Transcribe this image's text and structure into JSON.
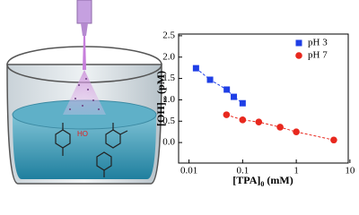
{
  "illustration": {
    "radical_label": "HO"
  },
  "chart_data": {
    "type": "scatter",
    "x_label": [
      "[TPA]",
      "0",
      "(mM)"
    ],
    "y_label": [
      "[OH]",
      "ss",
      "(pM)"
    ],
    "xlog": true,
    "xlim": [
      0.0064,
      9.3
    ],
    "xticks": [
      0.01,
      0.1,
      1,
      10
    ],
    "ylim": [
      -0.48,
      2.54
    ],
    "yticks": [
      {
        "value": 0,
        "label": "0.0"
      },
      0.5,
      {
        "value": 1,
        "label": "1.0"
      },
      1.5,
      {
        "value": 2,
        "label": "2.0"
      },
      2.5
    ],
    "legend": "upper right",
    "series": [
      {
        "name": "pH 3",
        "color": "#1f3fe6",
        "marker": "square",
        "x": [
          0.0135,
          0.0247,
          0.0506,
          0.0685,
          0.1
        ],
        "values": [
          1.74,
          1.47,
          1.24,
          1.07,
          0.92
        ]
      },
      {
        "name": "pH 7",
        "color": "#e8281e",
        "marker": "circle",
        "x": [
          0.05,
          0.1,
          0.2,
          0.5,
          1,
          5
        ],
        "values": [
          0.65,
          0.53,
          0.48,
          0.36,
          0.25,
          0.06
        ]
      }
    ]
  }
}
